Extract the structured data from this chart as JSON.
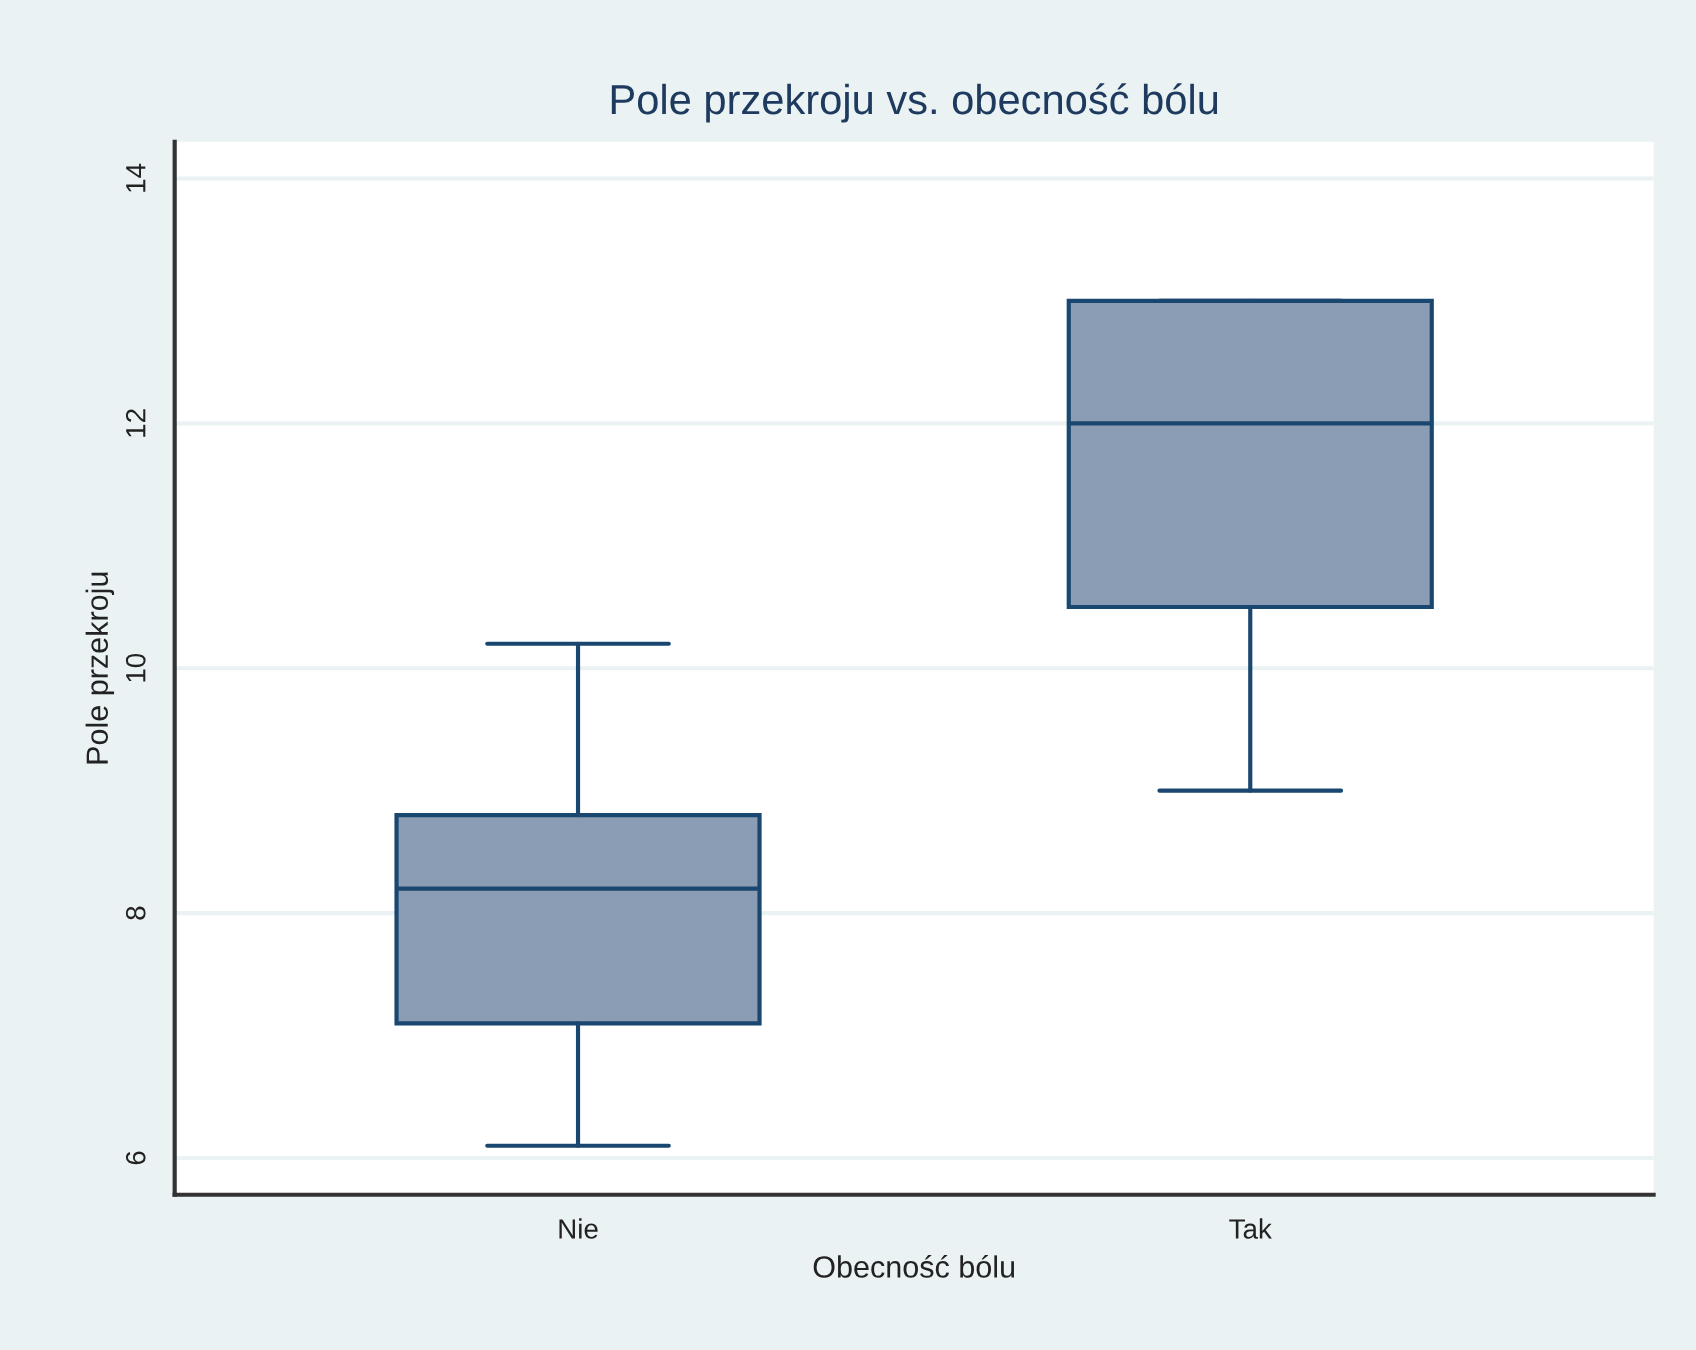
{
  "chart_data": {
    "type": "box",
    "title": "Pole przekroju vs. obecność bólu",
    "xlabel": "Obecność bólu",
    "ylabel": "Pole przekroju",
    "categories": [
      "Nie",
      "Tak"
    ],
    "boxes": [
      {
        "low": 6.1,
        "q1": 7.1,
        "median": 8.2,
        "q3": 8.8,
        "high": 10.2
      },
      {
        "low": 9.0,
        "q1": 10.5,
        "median": 12.0,
        "q3": 13.0,
        "high": 13.0
      }
    ],
    "color": "#8a9db5",
    "ylim": [
      5.7,
      14.3
    ],
    "yticks": [
      6,
      8,
      10,
      12,
      14
    ],
    "grid": "y",
    "legend": false
  }
}
